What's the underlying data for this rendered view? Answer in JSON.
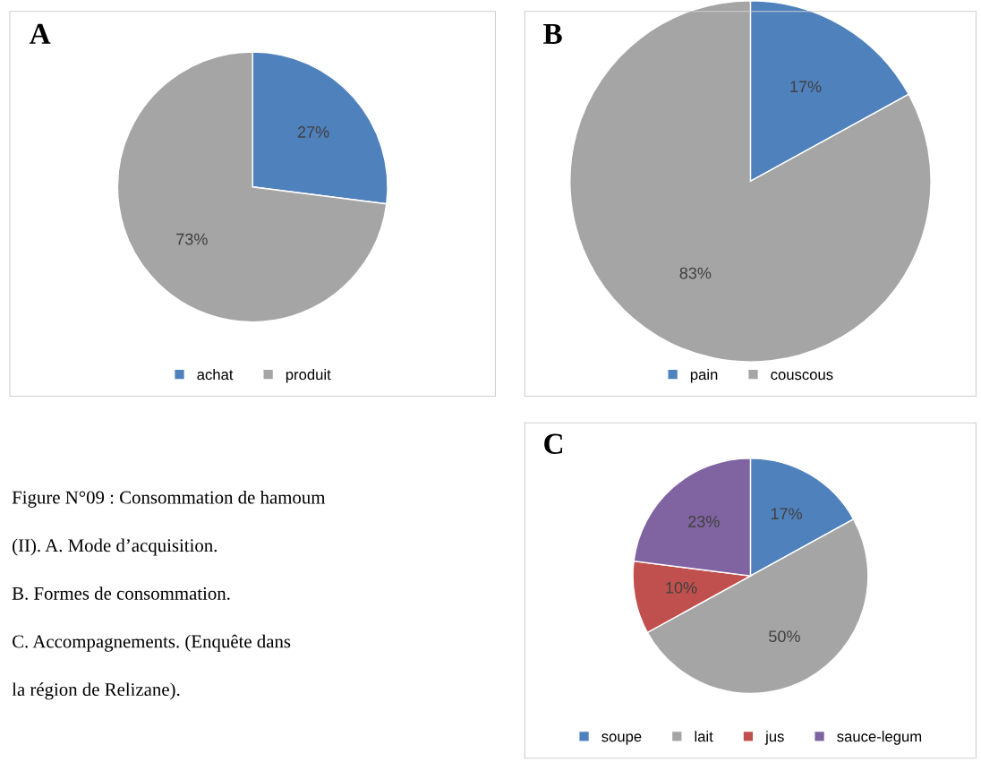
{
  "chart_data": [
    {
      "type": "pie",
      "title": "A",
      "categories": [
        "achat",
        "produit"
      ],
      "values": [
        27,
        73
      ],
      "colors": [
        "#4f81bd",
        "#a5a5a5"
      ],
      "value_labels": [
        "27%",
        "73%"
      ],
      "legend": "bottom"
    },
    {
      "type": "pie",
      "title": "B",
      "categories": [
        "pain",
        "couscous"
      ],
      "values": [
        17,
        83
      ],
      "colors": [
        "#4f81bd",
        "#a5a5a5"
      ],
      "value_labels": [
        "17%",
        "83%"
      ],
      "legend": "bottom"
    },
    {
      "type": "pie",
      "title": "C",
      "categories": [
        "soupe",
        "lait",
        "jus",
        "sauce-legum"
      ],
      "values": [
        17,
        50,
        10,
        23
      ],
      "colors": [
        "#4f81bd",
        "#a5a5a5",
        "#c0504d",
        "#8064a2"
      ],
      "value_labels": [
        "17%",
        "50%",
        "10%",
        "23%"
      ],
      "legend": "bottom",
      "annotations": [
        "Figure N°09 : Consommation de hamoum",
        "(II). A. Mode d’acquisition.",
        "B. Formes de consommation.",
        "C. Accompagnements. (Enquête dans",
        "la région de Relizane)."
      ]
    }
  ]
}
